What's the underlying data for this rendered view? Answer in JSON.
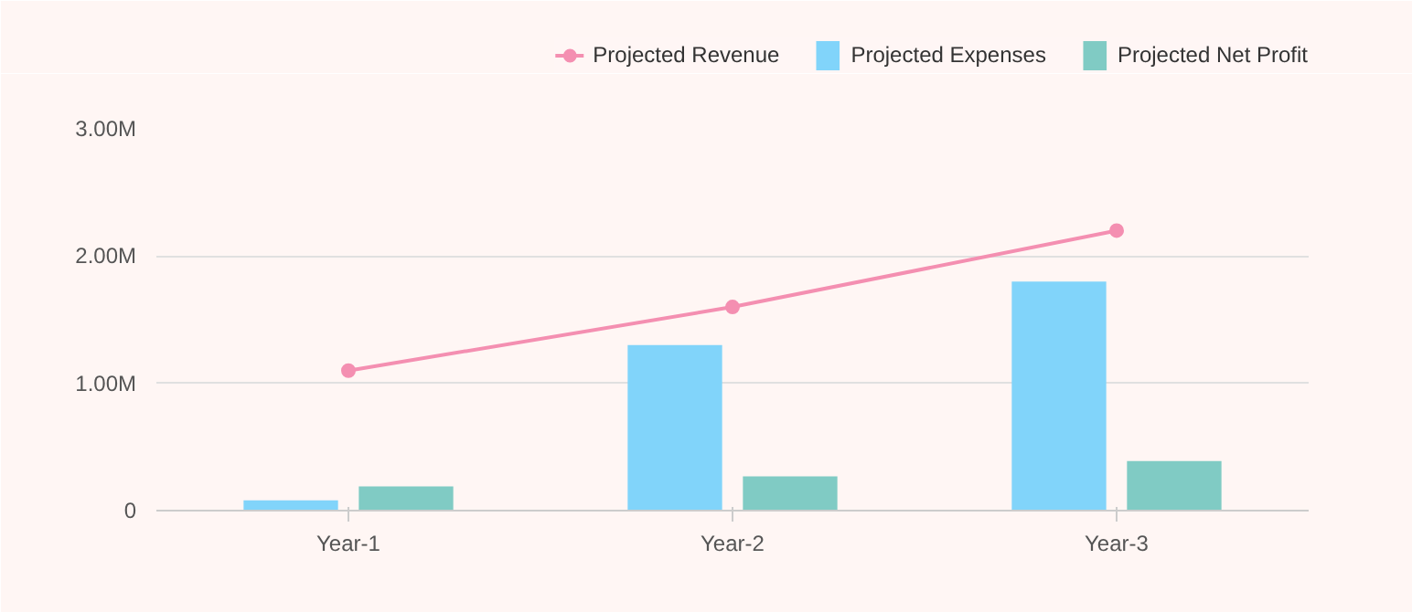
{
  "chart_data": {
    "type": "bar",
    "categories": [
      "Year-1",
      "Year-2",
      "Year-3"
    ],
    "series": [
      {
        "name": "Projected Revenue",
        "type": "line",
        "color": "#f48fb1",
        "values": [
          1100000,
          1600000,
          2200000
        ]
      },
      {
        "name": "Projected Expenses",
        "color": "#81d4fa",
        "values": [
          80000,
          1300000,
          1800000
        ]
      },
      {
        "name": "Projected Net Profit",
        "color": "#80cbc4",
        "values": [
          190000,
          270000,
          390000
        ]
      }
    ],
    "ylim": [
      0,
      3000000
    ],
    "yticks": [
      {
        "value": 0,
        "label": "0"
      },
      {
        "value": 1000000,
        "label": "1.00M"
      },
      {
        "value": 2000000,
        "label": "2.00M"
      },
      {
        "value": 3000000,
        "label": "3.00M"
      }
    ],
    "grid": "y",
    "legend": "top right",
    "marker": "circle"
  }
}
